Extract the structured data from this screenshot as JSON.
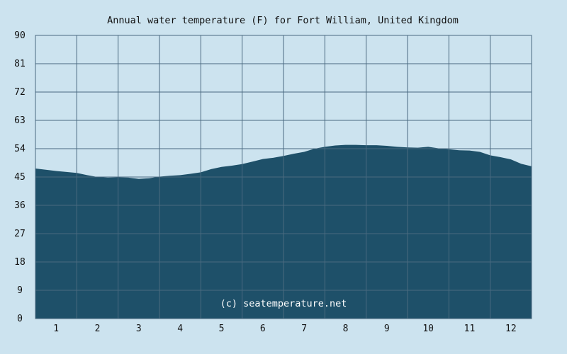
{
  "chart_data": {
    "type": "area",
    "title": "Annual water temperature (F) for Fort William, United Kingdom",
    "xlabel": "",
    "ylabel": "",
    "ylim": [
      0,
      90
    ],
    "yticks": [
      "0",
      "9",
      "18",
      "27",
      "36",
      "45",
      "54",
      "63",
      "72",
      "81",
      "90"
    ],
    "xlim": [
      0.5,
      12.5
    ],
    "xticks": [
      "1",
      "2",
      "3",
      "4",
      "5",
      "6",
      "7",
      "8",
      "9",
      "10",
      "11",
      "12"
    ],
    "grid": true,
    "legend": "none",
    "watermark": "(c) seatemperature.net",
    "colors": {
      "fill": "#1e5069",
      "grid": "#4a6a80",
      "background": "#cce3ef",
      "frame": "#4a6a80"
    },
    "series": [
      {
        "x": [
          0.5,
          0.75,
          1.0,
          1.25,
          1.5,
          1.75,
          2.0,
          2.25,
          2.5,
          2.75,
          3.0,
          3.25,
          3.5,
          3.75,
          4.0,
          4.25,
          4.5,
          4.75,
          5.0,
          5.25,
          5.5,
          5.75,
          6.0,
          6.25,
          6.5,
          6.75,
          7.0,
          7.25,
          7.5,
          7.75,
          8.0,
          8.25,
          8.5,
          8.75,
          9.0,
          9.25,
          9.5,
          9.75,
          10.0,
          10.25,
          10.5,
          10.75,
          11.0,
          11.25,
          11.5,
          11.75,
          12.0,
          12.25,
          12.5
        ],
        "values": [
          47.7,
          47.3,
          46.9,
          46.6,
          46.3,
          45.6,
          45.0,
          44.8,
          44.9,
          44.8,
          44.4,
          44.6,
          45.1,
          45.4,
          45.6,
          46.0,
          46.5,
          47.5,
          48.2,
          48.6,
          49.1,
          49.9,
          50.7,
          51.1,
          51.7,
          52.4,
          53.0,
          54.0,
          54.6,
          55.0,
          55.2,
          55.2,
          55.1,
          55.1,
          54.9,
          54.6,
          54.4,
          54.3,
          54.6,
          54.1,
          53.8,
          53.5,
          53.4,
          53.0,
          51.9,
          51.3,
          50.6,
          49.2,
          48.4
        ]
      }
    ]
  }
}
